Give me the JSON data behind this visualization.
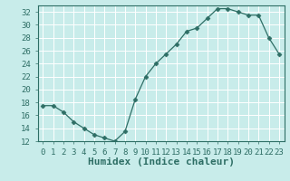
{
  "x": [
    0,
    1,
    2,
    3,
    4,
    5,
    6,
    7,
    8,
    9,
    10,
    11,
    12,
    13,
    14,
    15,
    16,
    17,
    18,
    19,
    20,
    21,
    22,
    23
  ],
  "y": [
    17.5,
    17.5,
    16.5,
    15,
    14,
    13,
    12.5,
    12,
    13.5,
    18.5,
    22,
    24,
    25.5,
    27,
    29,
    29.5,
    31,
    32.5,
    32.5,
    32,
    31.5,
    31.5,
    28,
    25.5
  ],
  "xlabel": "Humidex (Indice chaleur)",
  "ylim": [
    12,
    33
  ],
  "xlim": [
    -0.5,
    23.5
  ],
  "yticks": [
    12,
    14,
    16,
    18,
    20,
    22,
    24,
    26,
    28,
    30,
    32
  ],
  "xticks": [
    0,
    1,
    2,
    3,
    4,
    5,
    6,
    7,
    8,
    9,
    10,
    11,
    12,
    13,
    14,
    15,
    16,
    17,
    18,
    19,
    20,
    21,
    22,
    23
  ],
  "line_color": "#2e6e65",
  "marker": "D",
  "marker_size": 2.5,
  "bg_color": "#c8ecea",
  "grid_color": "#ffffff",
  "axes_color": "#2e6e65",
  "tick_label_fontsize": 6.5,
  "xlabel_fontsize": 8
}
